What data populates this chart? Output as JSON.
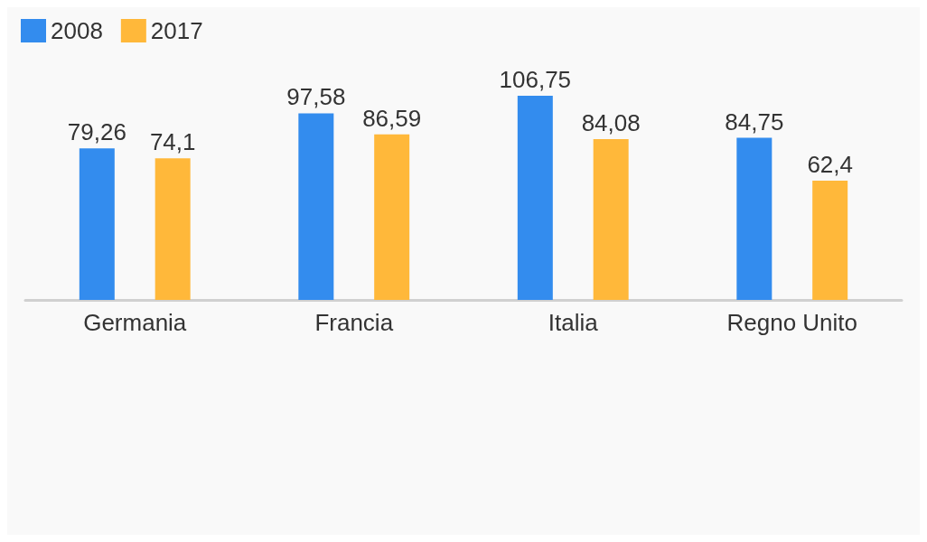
{
  "chart_data": {
    "type": "bar",
    "categories": [
      "Germania",
      "Francia",
      "Italia",
      "Regno Unito"
    ],
    "series": [
      {
        "name": "2008",
        "color": "#338cee",
        "values": [
          79.26,
          97.58,
          106.75,
          84.75
        ],
        "value_labels": [
          "79,26",
          "97,58",
          "106,75",
          "84,75"
        ]
      },
      {
        "name": "2017",
        "color": "#ffb83a",
        "values": [
          74.1,
          86.59,
          84.08,
          62.4
        ],
        "value_labels": [
          "74,1",
          "86,59",
          "84,08",
          "62,4"
        ]
      }
    ],
    "legend": "top left"
  }
}
